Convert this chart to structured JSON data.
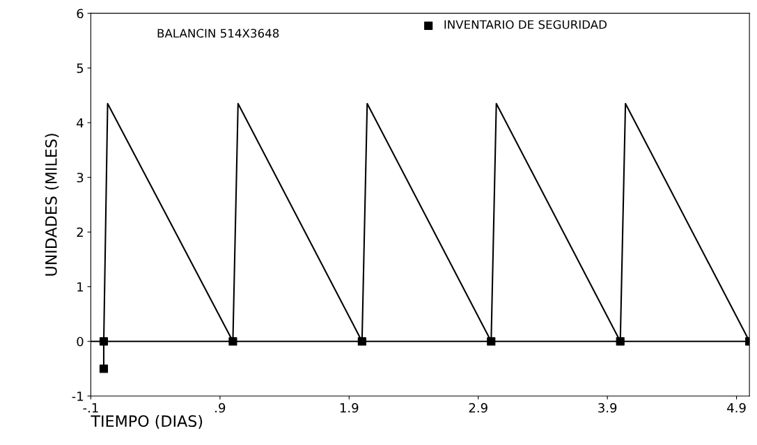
{
  "chart_data": {
    "type": "line",
    "xlabel": "TIEMPO (DIAS)",
    "ylabel": "UNIDADES (MILES)",
    "annotations": [
      "BALANCIN 514X3648"
    ],
    "series": [
      {
        "color": "#000000",
        "x": [
          0,
          0,
          0.03,
          1,
          1.04,
          2,
          2.04,
          3,
          3.04,
          4,
          4.04,
          5
        ],
        "values": [
          -0.5,
          0,
          4.35,
          0,
          4.35,
          0,
          4.35,
          0,
          4.35,
          0,
          4.35,
          0
        ]
      },
      {
        "type": "scatter",
        "name": "INVENTARIO DE SEGURIDAD",
        "color": "#000000",
        "marker": "square",
        "x": [
          0,
          0,
          1,
          2,
          3,
          4,
          5
        ],
        "values": [
          -0.5,
          0,
          0,
          0,
          0,
          0,
          0
        ]
      }
    ],
    "ref_lines": [
      {
        "axis": "y",
        "value": 0,
        "color": "#000000"
      }
    ],
    "xlim": [
      -0.1,
      5.0
    ],
    "xticks": [
      {
        "value": -0.1,
        "label": "-.1"
      },
      {
        "value": 0.9,
        "label": ".9"
      },
      1.9,
      2.9,
      3.9,
      4.9
    ],
    "ylim": [
      -1,
      6
    ],
    "yticks": [
      -1,
      0,
      1,
      2,
      3,
      4,
      5,
      6
    ],
    "grid": false,
    "legend": "top right"
  }
}
